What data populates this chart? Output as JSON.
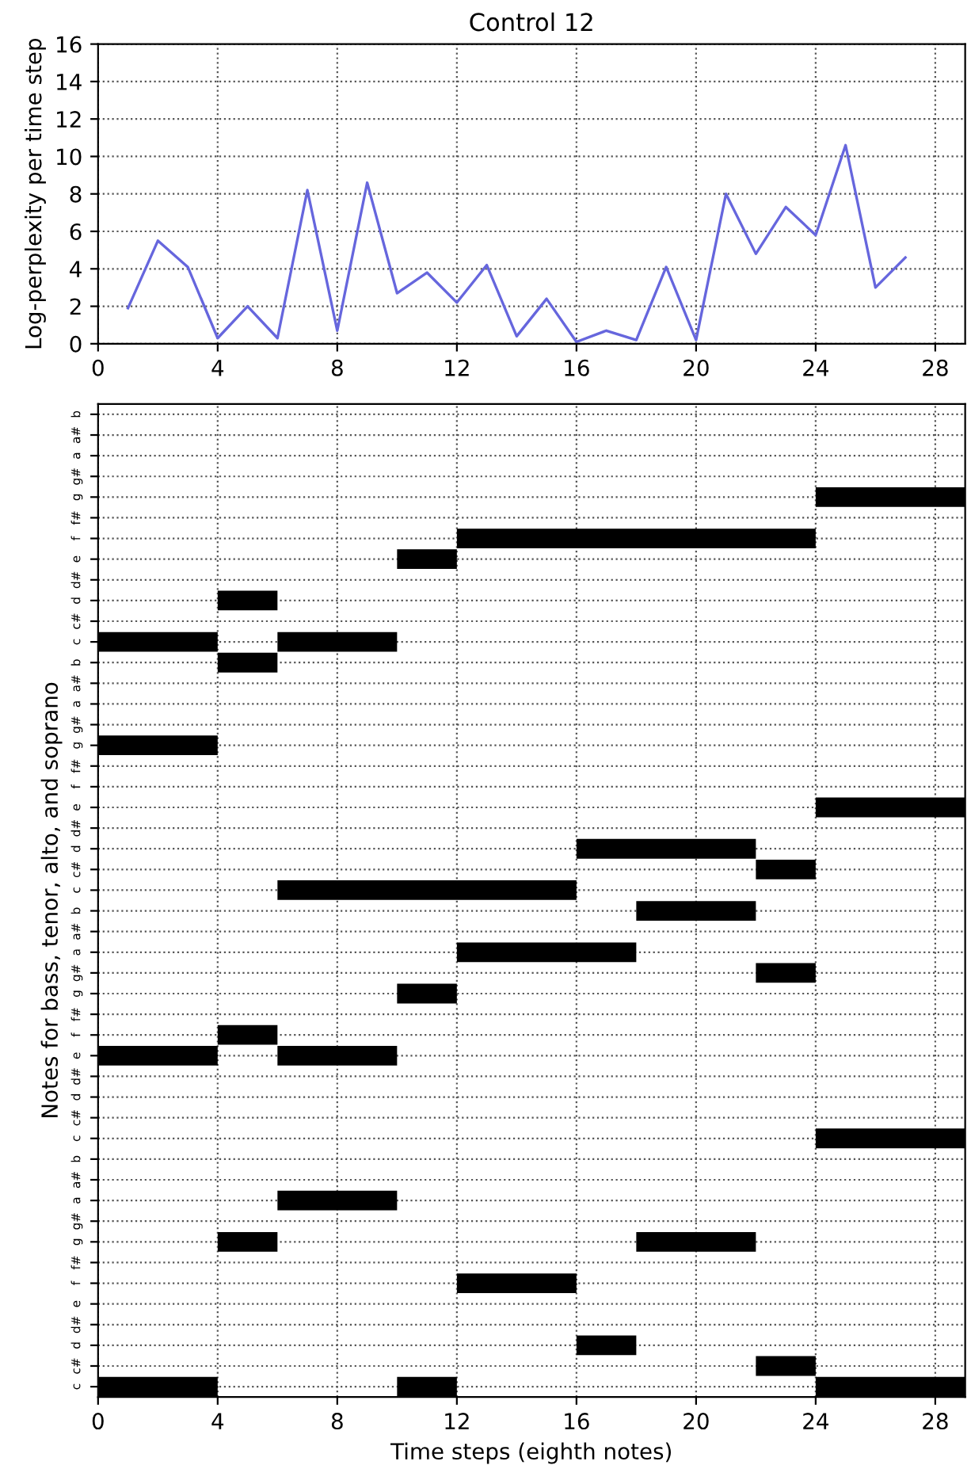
{
  "chart_data": [
    {
      "type": "line",
      "title": "Control 12",
      "ylabel": "Log-perplexity per time step",
      "x": [
        1,
        2,
        3,
        4,
        5,
        6,
        7,
        8,
        9,
        10,
        11,
        12,
        13,
        14,
        15,
        16,
        17,
        18,
        19,
        20,
        21,
        22,
        23,
        24,
        25,
        26,
        27
      ],
      "series": [
        {
          "color": "#6666dd",
          "values": [
            1.9,
            5.5,
            4.1,
            0.3,
            2.0,
            0.3,
            8.2,
            0.7,
            8.6,
            2.7,
            3.8,
            2.2,
            4.2,
            0.4,
            2.4,
            0.1,
            0.7,
            0.2,
            4.1,
            0.2,
            8.0,
            4.8,
            7.3,
            5.8,
            10.6,
            3.0,
            4.6
          ]
        }
      ],
      "xlim": [
        0,
        29
      ],
      "xticks": [
        0,
        4,
        8,
        12,
        16,
        20,
        24,
        28
      ],
      "ylim": [
        0,
        16
      ],
      "yticks": [
        0,
        2,
        4,
        6,
        8,
        10,
        12,
        14,
        16
      ],
      "grid": true
    },
    {
      "type": "bar",
      "orientation": "horizontal",
      "ylabel": "Notes for bass, tenor, alto, and soprano",
      "xlabel": "Time steps (eighth notes)",
      "categories": [
        "b",
        "a#",
        "a",
        "g#",
        "g",
        "f#",
        "f",
        "e",
        "d#",
        "d",
        "c#",
        "c",
        "b",
        "a#",
        "a",
        "g#",
        "g",
        "f#",
        "f",
        "e",
        "d#",
        "d",
        "c#",
        "c",
        "b",
        "a#",
        "a",
        "g#",
        "g",
        "f#",
        "f",
        "e",
        "d#",
        "d",
        "c#",
        "c",
        "b",
        "a#",
        "a",
        "g#",
        "g",
        "f#",
        "f",
        "e",
        "d#",
        "d",
        "c#",
        "c"
      ],
      "series": [
        {
          "color": "#000000",
          "base": [
            null,
            null,
            null,
            null,
            24,
            null,
            12,
            10,
            null,
            4,
            null,
            0,
            4,
            null,
            null,
            null,
            0,
            null,
            null,
            24,
            null,
            16,
            22,
            6,
            18,
            null,
            12,
            22,
            10,
            null,
            4,
            0,
            null,
            null,
            null,
            24,
            null,
            null,
            6,
            null,
            4,
            null,
            12,
            null,
            null,
            16,
            22,
            0
          ],
          "values": [
            null,
            null,
            null,
            null,
            5,
            null,
            12,
            2,
            null,
            2,
            null,
            4,
            2,
            null,
            null,
            null,
            4,
            null,
            null,
            5,
            null,
            6,
            2,
            10,
            4,
            null,
            6,
            2,
            2,
            null,
            2,
            4,
            null,
            null,
            null,
            5,
            null,
            null,
            4,
            null,
            2,
            null,
            4,
            null,
            null,
            2,
            2,
            4
          ]
        },
        {
          "color": "#000000",
          "base": [
            null,
            null,
            null,
            null,
            null,
            null,
            null,
            null,
            null,
            null,
            null,
            6,
            null,
            null,
            null,
            null,
            null,
            null,
            null,
            null,
            null,
            null,
            null,
            null,
            null,
            null,
            null,
            null,
            null,
            null,
            null,
            6,
            null,
            null,
            null,
            null,
            null,
            null,
            null,
            null,
            18,
            null,
            null,
            null,
            null,
            null,
            null,
            10
          ],
          "values": [
            null,
            null,
            null,
            null,
            null,
            null,
            null,
            null,
            null,
            null,
            null,
            4,
            null,
            null,
            null,
            null,
            null,
            null,
            null,
            null,
            null,
            null,
            null,
            null,
            null,
            null,
            null,
            null,
            null,
            null,
            null,
            4,
            null,
            null,
            null,
            null,
            null,
            null,
            null,
            null,
            4,
            null,
            null,
            null,
            null,
            null,
            null,
            2
          ]
        },
        {
          "color": "#000000",
          "base": [
            null,
            null,
            null,
            null,
            null,
            null,
            null,
            null,
            null,
            null,
            null,
            null,
            null,
            null,
            null,
            null,
            null,
            null,
            null,
            null,
            null,
            null,
            null,
            null,
            null,
            null,
            null,
            null,
            null,
            null,
            null,
            null,
            null,
            null,
            null,
            null,
            null,
            null,
            null,
            null,
            null,
            null,
            null,
            null,
            null,
            null,
            null,
            24
          ],
          "values": [
            null,
            null,
            null,
            null,
            null,
            null,
            null,
            null,
            null,
            null,
            null,
            null,
            null,
            null,
            null,
            null,
            null,
            null,
            null,
            null,
            null,
            null,
            null,
            null,
            null,
            null,
            null,
            null,
            null,
            null,
            null,
            null,
            null,
            null,
            null,
            null,
            null,
            null,
            null,
            null,
            null,
            null,
            null,
            null,
            null,
            null,
            null,
            5
          ]
        }
      ],
      "xlim": [
        0,
        29
      ],
      "xticks": [
        0,
        4,
        8,
        12,
        16,
        20,
        24,
        28
      ],
      "grid": true
    }
  ]
}
